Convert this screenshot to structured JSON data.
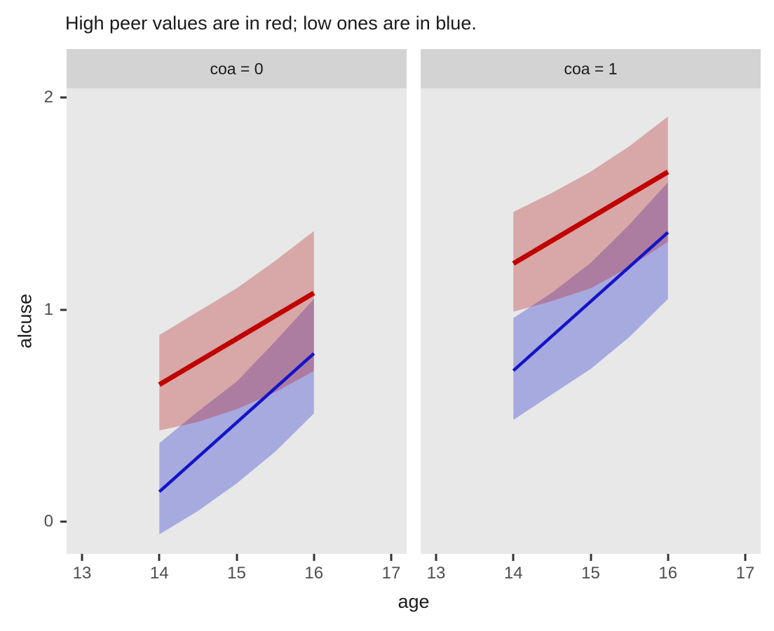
{
  "chart_data": {
    "type": "line",
    "title": "High peer values are in red; low ones are in blue.",
    "xlabel": "age",
    "ylabel": "alcuse",
    "xlim": [
      12.8,
      17.2
    ],
    "ylim": [
      -0.152,
      2.043
    ],
    "x_ticks": [
      13,
      14,
      15,
      16,
      17
    ],
    "y_ticks": [
      0,
      1,
      2
    ],
    "grid": false,
    "legend": "none",
    "colors": {
      "red_line": "#C00000",
      "blue_line": "#1414C8",
      "red_ribbon_fill": "rgba(184,30,30,0.32)",
      "blue_ribbon_fill": "rgba(32,41,204,0.32)",
      "ribbon_overlap_appearance": "#B083AC",
      "panel_background": "#E8E8E8",
      "strip_background": "#D3D3D3",
      "tick_mark": "#333333",
      "tick_label": "#4D4D4D",
      "text": "#1A1A1A"
    },
    "facets": [
      {
        "label": "coa = 0",
        "series": [
          {
            "name": "low-peer-line",
            "color_key": "blue_line",
            "width": 4.5,
            "x": [
              14,
              16
            ],
            "y": [
              0.141,
              0.793
            ],
            "ribbon": {
              "fill_key": "blue_ribbon_fill",
              "x": [
                14,
                14.5,
                15,
                15.5,
                16
              ],
              "lo": [
                -0.06,
                0.05,
                0.18,
                0.33,
                0.51
              ],
              "hi": [
                0.37,
                0.52,
                0.66,
                0.85,
                1.05
              ]
            }
          },
          {
            "name": "high-peer-line",
            "color_key": "red_line",
            "width": 7,
            "x": [
              14,
              16
            ],
            "y": [
              0.646,
              1.078
            ],
            "ribbon": {
              "fill_key": "red_ribbon_fill",
              "x": [
                14,
                14.5,
                15,
                15.5,
                16
              ],
              "lo": [
                0.43,
                0.47,
                0.53,
                0.61,
                0.71
              ],
              "hi": [
                0.88,
                0.99,
                1.1,
                1.23,
                1.37
              ]
            }
          }
        ]
      },
      {
        "label": "coa = 1",
        "series": [
          {
            "name": "low-peer-line",
            "color_key": "blue_line",
            "width": 4.5,
            "x": [
              14,
              16
            ],
            "y": [
              0.712,
              1.364
            ],
            "ribbon": {
              "fill_key": "blue_ribbon_fill",
              "x": [
                14,
                14.5,
                15,
                15.5,
                16
              ],
              "lo": [
                0.48,
                0.6,
                0.72,
                0.87,
                1.05
              ],
              "hi": [
                0.96,
                1.08,
                1.22,
                1.4,
                1.6
              ]
            }
          },
          {
            "name": "high-peer-line",
            "color_key": "red_line",
            "width": 7,
            "x": [
              14,
              16
            ],
            "y": [
              1.217,
              1.649
            ],
            "ribbon": {
              "fill_key": "red_ribbon_fill",
              "x": [
                14,
                14.5,
                15,
                15.5,
                16
              ],
              "lo": [
                0.99,
                1.04,
                1.1,
                1.2,
                1.32
              ],
              "hi": [
                1.46,
                1.55,
                1.65,
                1.77,
                1.91
              ]
            }
          }
        ]
      }
    ]
  }
}
